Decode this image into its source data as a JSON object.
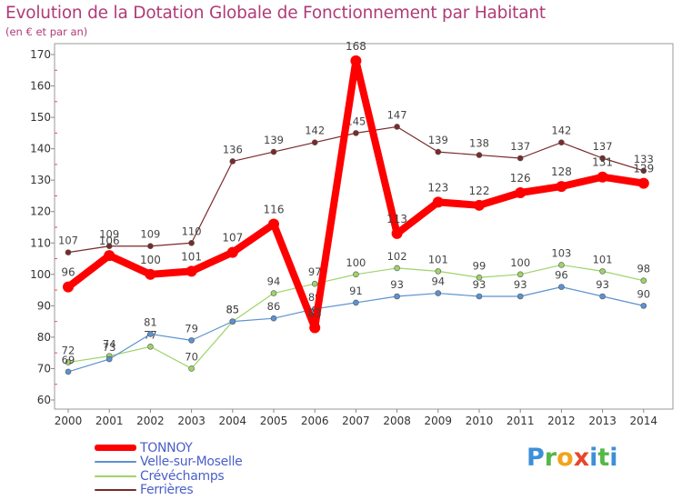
{
  "title": "Evolution de la Dotation Globale de Fonctionnement par Habitant",
  "subtitle": "(en € et par an)",
  "logo": {
    "text": "Proxiti",
    "letters": [
      "P",
      "r",
      "o",
      "x",
      "i",
      "t",
      "i"
    ]
  },
  "chart_data": {
    "type": "line",
    "x": [
      "2000",
      "2001",
      "2002",
      "2003",
      "2004",
      "2005",
      "2006",
      "2007",
      "2008",
      "2009",
      "2010",
      "2011",
      "2012",
      "2013",
      "2014"
    ],
    "ylim": [
      60,
      170
    ],
    "yticks": [
      60,
      70,
      80,
      90,
      100,
      110,
      120,
      130,
      140,
      150,
      160,
      170
    ],
    "grid": false,
    "legend_position": "bottom-left",
    "series": [
      {
        "name": "Ferrières",
        "color": "#7a2a2a",
        "values": [
          107,
          109,
          109,
          110,
          136,
          139,
          142,
          145,
          147,
          139,
          138,
          137,
          142,
          137,
          133
        ]
      },
      {
        "name": "Crévéchamps",
        "color": "#9ed36a",
        "values": [
          72,
          74,
          77,
          70,
          85,
          94,
          97,
          100,
          102,
          101,
          99,
          100,
          103,
          101,
          98
        ]
      },
      {
        "name": "Velle-sur-Moselle",
        "color": "#5b92d0",
        "values": [
          69,
          73,
          81,
          79,
          85,
          86,
          89,
          91,
          93,
          94,
          93,
          93,
          96,
          93,
          90
        ]
      },
      {
        "name": "TONNOY",
        "color": "#ff0000",
        "values": [
          96,
          106,
          100,
          101,
          107,
          116,
          83,
          168,
          113,
          123,
          122,
          126,
          128,
          131,
          129
        ]
      }
    ],
    "legend": [
      "TONNOY",
      "Velle-sur-Moselle",
      "Crévéchamps",
      "Ferrières"
    ]
  }
}
